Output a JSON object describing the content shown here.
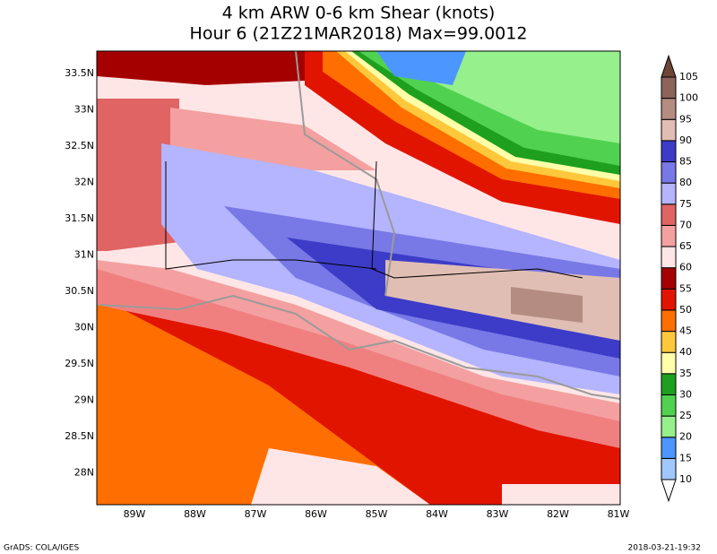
{
  "title": [
    "4 km ARW 0-6 km Shear (knots)",
    "Hour 6 (21Z21MAR2018) Max=99.0012"
  ],
  "lat_labels": [
    "33.5N",
    "33N",
    "32.5N",
    "32N",
    "31.5N",
    "31N",
    "30.5N",
    "30N",
    "29.5N",
    "29N",
    "28.5N",
    "28N"
  ],
  "lon_labels": [
    "89W",
    "88W",
    "87W",
    "86W",
    "85W",
    "84W",
    "83W",
    "82W",
    "81W"
  ],
  "colorbar": {
    "levels": [
      10,
      15,
      20,
      25,
      30,
      35,
      40,
      45,
      50,
      55,
      60,
      65,
      70,
      75,
      80,
      85,
      90,
      95,
      100,
      105
    ],
    "colors": [
      "#ffffff",
      "#a0c8ff",
      "#4c96ff",
      "#96f08c",
      "#50d250",
      "#1ea01e",
      "#ffffaa",
      "#ffc83c",
      "#ff6e00",
      "#e11400",
      "#a50000",
      "#ffe6e6",
      "#f4a0a0",
      "#e06464",
      "#b4b4ff",
      "#7878e6",
      "#3c3cc8",
      "#e1beb4",
      "#b48c82",
      "#8c645a",
      "#6e4637"
    ]
  },
  "footer": {
    "left": "GrADS: COLA/IGES",
    "right": "2018-03-21-19:32"
  }
}
